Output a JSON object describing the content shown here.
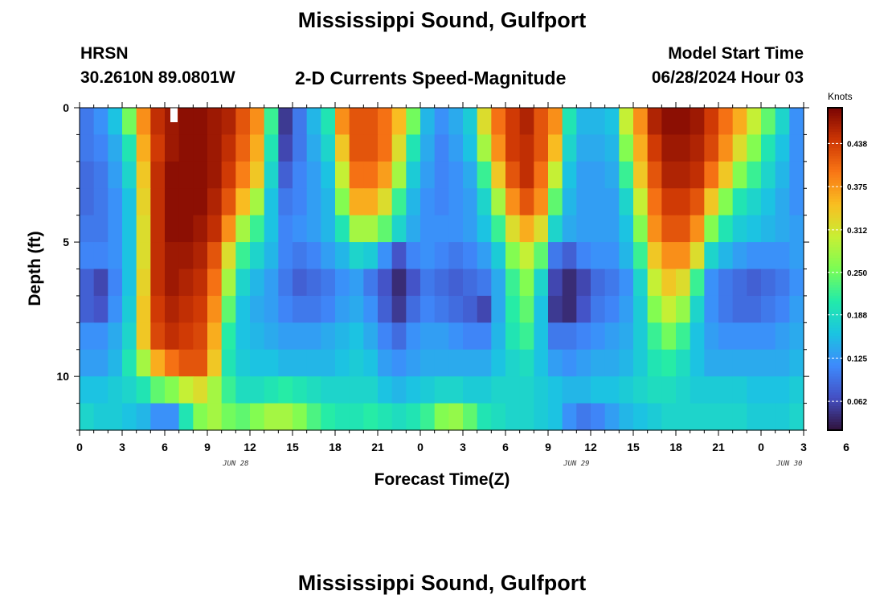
{
  "header": {
    "title": "Mississippi Sound, Gulfport",
    "station_id": "HRSN",
    "station_coords": "30.2610N  89.0801W",
    "subtitle": "2-D Currents Speed-Magnitude",
    "model_label": "Model Start Time",
    "model_time": "06/28/2024 Hour 03"
  },
  "footer": {
    "title": "Mississippi Sound, Gulfport"
  },
  "chart_data": {
    "type": "heatmap",
    "title": "2-D Currents Speed-Magnitude",
    "xlabel": "Forecast Time(Z)",
    "ylabel": "Depth (ft)",
    "x_range_hours": [
      0,
      51
    ],
    "y_range_ft": [
      0,
      12
    ],
    "y_inverted": true,
    "x_tick_labels": [
      "0",
      "3",
      "6",
      "9",
      "12",
      "15",
      "18",
      "21",
      "0",
      "3",
      "6",
      "9",
      "12",
      "15",
      "18",
      "21",
      "0",
      "3",
      "6"
    ],
    "y_tick_labels": [
      "0",
      "5",
      "10"
    ],
    "date_labels": [
      {
        "text": "JUN 28",
        "hour": 11
      },
      {
        "text": "JUN 29",
        "hour": 35
      },
      {
        "text": "JUN 30",
        "hour": 50
      }
    ],
    "colorbar": {
      "label": "Knots",
      "range": [
        0.02,
        0.49
      ],
      "ticks": [
        "0.438",
        "0.375",
        "0.312",
        "0.250",
        "0.188",
        "0.125",
        "0.062"
      ],
      "tick_values": [
        0.438,
        0.375,
        0.312,
        0.25,
        0.188,
        0.125,
        0.062
      ],
      "colormap": "turbo"
    },
    "grid_hours": 51,
    "grid_depth_rows": 12,
    "speed_knots_by_depth": [
      [
        0.1,
        0.12,
        0.16,
        0.25,
        0.38,
        0.45,
        0.47,
        0.48,
        0.48,
        0.47,
        0.46,
        0.42,
        0.38,
        0.22,
        0.05,
        0.1,
        0.15,
        0.2,
        0.38,
        0.42,
        0.42,
        0.4,
        0.35,
        0.25,
        0.15,
        0.12,
        0.14,
        0.17,
        0.32,
        0.4,
        0.44,
        0.46,
        0.42,
        0.38,
        0.2,
        0.15,
        0.15,
        0.16,
        0.3,
        0.38,
        0.46,
        0.48,
        0.48,
        0.47,
        0.44,
        0.4,
        0.36,
        0.3,
        0.24,
        0.18,
        0.12
      ],
      [
        0.1,
        0.11,
        0.14,
        0.2,
        0.36,
        0.44,
        0.47,
        0.48,
        0.48,
        0.47,
        0.45,
        0.41,
        0.36,
        0.2,
        0.06,
        0.1,
        0.14,
        0.18,
        0.34,
        0.42,
        0.42,
        0.4,
        0.32,
        0.2,
        0.14,
        0.11,
        0.13,
        0.16,
        0.28,
        0.38,
        0.44,
        0.45,
        0.42,
        0.35,
        0.18,
        0.14,
        0.14,
        0.15,
        0.26,
        0.36,
        0.44,
        0.47,
        0.47,
        0.46,
        0.43,
        0.38,
        0.32,
        0.26,
        0.2,
        0.16,
        0.12
      ],
      [
        0.09,
        0.1,
        0.13,
        0.18,
        0.34,
        0.45,
        0.48,
        0.48,
        0.48,
        0.47,
        0.44,
        0.39,
        0.34,
        0.18,
        0.08,
        0.11,
        0.13,
        0.16,
        0.3,
        0.4,
        0.4,
        0.37,
        0.28,
        0.17,
        0.13,
        0.11,
        0.12,
        0.14,
        0.22,
        0.34,
        0.42,
        0.45,
        0.4,
        0.3,
        0.16,
        0.13,
        0.13,
        0.14,
        0.22,
        0.34,
        0.42,
        0.46,
        0.46,
        0.45,
        0.4,
        0.34,
        0.26,
        0.22,
        0.18,
        0.15,
        0.12
      ],
      [
        0.09,
        0.1,
        0.12,
        0.16,
        0.33,
        0.45,
        0.48,
        0.48,
        0.48,
        0.46,
        0.42,
        0.35,
        0.28,
        0.16,
        0.1,
        0.11,
        0.13,
        0.15,
        0.26,
        0.36,
        0.36,
        0.32,
        0.22,
        0.15,
        0.12,
        0.11,
        0.12,
        0.13,
        0.18,
        0.28,
        0.38,
        0.42,
        0.38,
        0.24,
        0.15,
        0.13,
        0.13,
        0.13,
        0.18,
        0.3,
        0.4,
        0.44,
        0.44,
        0.42,
        0.34,
        0.26,
        0.2,
        0.18,
        0.16,
        0.14,
        0.12
      ],
      [
        0.1,
        0.1,
        0.12,
        0.16,
        0.32,
        0.45,
        0.48,
        0.48,
        0.47,
        0.45,
        0.38,
        0.28,
        0.22,
        0.16,
        0.11,
        0.12,
        0.13,
        0.15,
        0.2,
        0.28,
        0.28,
        0.24,
        0.18,
        0.14,
        0.12,
        0.12,
        0.12,
        0.13,
        0.16,
        0.22,
        0.32,
        0.36,
        0.32,
        0.18,
        0.14,
        0.13,
        0.13,
        0.13,
        0.16,
        0.26,
        0.38,
        0.42,
        0.42,
        0.38,
        0.26,
        0.2,
        0.17,
        0.16,
        0.15,
        0.14,
        0.13
      ],
      [
        0.11,
        0.11,
        0.12,
        0.16,
        0.32,
        0.45,
        0.47,
        0.47,
        0.46,
        0.42,
        0.32,
        0.22,
        0.18,
        0.15,
        0.11,
        0.1,
        0.11,
        0.13,
        0.15,
        0.18,
        0.17,
        0.12,
        0.07,
        0.11,
        0.12,
        0.11,
        0.1,
        0.11,
        0.13,
        0.17,
        0.26,
        0.3,
        0.24,
        0.1,
        0.08,
        0.11,
        0.12,
        0.12,
        0.15,
        0.22,
        0.34,
        0.38,
        0.38,
        0.32,
        0.18,
        0.15,
        0.13,
        0.12,
        0.12,
        0.12,
        0.13
      ],
      [
        0.08,
        0.06,
        0.11,
        0.16,
        0.33,
        0.45,
        0.47,
        0.46,
        0.45,
        0.4,
        0.28,
        0.18,
        0.15,
        0.13,
        0.1,
        0.08,
        0.09,
        0.1,
        0.12,
        0.13,
        0.1,
        0.07,
        0.04,
        0.07,
        0.1,
        0.09,
        0.08,
        0.09,
        0.1,
        0.14,
        0.22,
        0.26,
        0.18,
        0.06,
        0.04,
        0.06,
        0.09,
        0.1,
        0.12,
        0.18,
        0.3,
        0.34,
        0.32,
        0.22,
        0.12,
        0.1,
        0.09,
        0.08,
        0.09,
        0.1,
        0.12
      ],
      [
        0.08,
        0.07,
        0.12,
        0.17,
        0.34,
        0.44,
        0.46,
        0.45,
        0.44,
        0.38,
        0.24,
        0.16,
        0.14,
        0.13,
        0.11,
        0.1,
        0.1,
        0.11,
        0.13,
        0.14,
        0.12,
        0.08,
        0.05,
        0.09,
        0.11,
        0.1,
        0.09,
        0.08,
        0.06,
        0.14,
        0.21,
        0.24,
        0.16,
        0.05,
        0.04,
        0.07,
        0.1,
        0.11,
        0.13,
        0.17,
        0.26,
        0.3,
        0.27,
        0.18,
        0.12,
        0.1,
        0.09,
        0.09,
        0.1,
        0.11,
        0.13
      ],
      [
        0.12,
        0.12,
        0.14,
        0.18,
        0.34,
        0.43,
        0.45,
        0.44,
        0.43,
        0.36,
        0.21,
        0.16,
        0.15,
        0.14,
        0.13,
        0.13,
        0.13,
        0.14,
        0.15,
        0.16,
        0.14,
        0.11,
        0.09,
        0.12,
        0.13,
        0.13,
        0.12,
        0.11,
        0.11,
        0.15,
        0.2,
        0.22,
        0.16,
        0.1,
        0.1,
        0.11,
        0.12,
        0.13,
        0.14,
        0.17,
        0.22,
        0.25,
        0.22,
        0.16,
        0.13,
        0.12,
        0.12,
        0.12,
        0.12,
        0.13,
        0.14
      ],
      [
        0.13,
        0.13,
        0.15,
        0.2,
        0.28,
        0.36,
        0.4,
        0.42,
        0.42,
        0.34,
        0.2,
        0.17,
        0.16,
        0.16,
        0.15,
        0.15,
        0.15,
        0.15,
        0.16,
        0.17,
        0.16,
        0.13,
        0.12,
        0.13,
        0.14,
        0.14,
        0.14,
        0.14,
        0.14,
        0.16,
        0.18,
        0.19,
        0.16,
        0.13,
        0.12,
        0.13,
        0.14,
        0.14,
        0.15,
        0.17,
        0.2,
        0.21,
        0.19,
        0.16,
        0.14,
        0.14,
        0.14,
        0.14,
        0.14,
        0.14,
        0.15
      ],
      [
        0.16,
        0.16,
        0.17,
        0.18,
        0.2,
        0.24,
        0.26,
        0.3,
        0.32,
        0.28,
        0.22,
        0.19,
        0.19,
        0.2,
        0.21,
        0.2,
        0.19,
        0.18,
        0.18,
        0.18,
        0.18,
        0.16,
        0.15,
        0.16,
        0.17,
        0.18,
        0.18,
        0.17,
        0.17,
        0.18,
        0.18,
        0.18,
        0.17,
        0.16,
        0.15,
        0.15,
        0.16,
        0.16,
        0.17,
        0.18,
        0.19,
        0.19,
        0.18,
        0.17,
        0.17,
        0.17,
        0.17,
        0.16,
        0.16,
        0.16,
        0.17
      ],
      [
        0.18,
        0.17,
        0.17,
        0.16,
        0.15,
        0.12,
        0.12,
        0.2,
        0.26,
        0.28,
        0.25,
        0.24,
        0.26,
        0.28,
        0.28,
        0.26,
        0.23,
        0.21,
        0.2,
        0.2,
        0.21,
        0.2,
        0.19,
        0.2,
        0.22,
        0.26,
        0.27,
        0.24,
        0.2,
        0.19,
        0.18,
        0.18,
        0.17,
        0.16,
        0.12,
        0.1,
        0.11,
        0.13,
        0.15,
        0.16,
        0.17,
        0.18,
        0.18,
        0.18,
        0.18,
        0.18,
        0.18,
        0.17,
        0.17,
        0.17,
        0.18
      ]
    ]
  }
}
